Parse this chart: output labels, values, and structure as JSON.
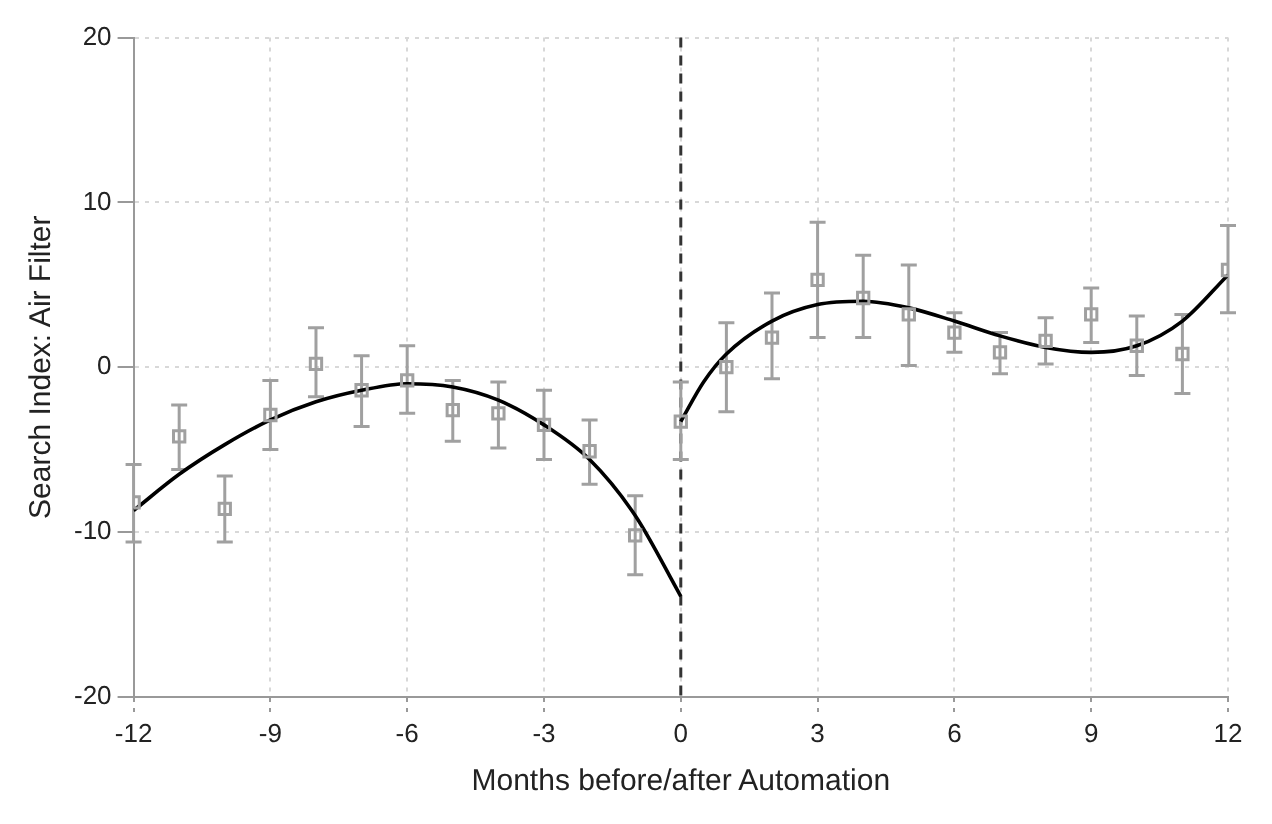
{
  "chart_data": {
    "type": "scatter",
    "xlabel": "Months before/after Automation",
    "ylabel": "Search Index: Air Filter",
    "x": [
      -12,
      -11,
      -10,
      -9,
      -8,
      -7,
      -6,
      -5,
      -4,
      -3,
      -2,
      -1,
      0,
      1,
      2,
      3,
      4,
      5,
      6,
      7,
      8,
      9,
      10,
      11,
      12
    ],
    "xlim": [
      -12,
      12
    ],
    "xticks": [
      -12,
      -9,
      -6,
      -3,
      0,
      3,
      6,
      9,
      12
    ],
    "ylim": [
      -20,
      20
    ],
    "yticks": [
      -20,
      -10,
      0,
      10,
      20
    ],
    "grid": true,
    "legend": false,
    "series": [
      {
        "type": "scatter",
        "marker": "square",
        "color": "#a0a0a0",
        "values": [
          -8.2,
          -4.2,
          -8.6,
          -2.9,
          0.2,
          -1.4,
          -0.8,
          -2.6,
          -2.8,
          -3.5,
          -5.1,
          -10.2,
          -3.3,
          0,
          1.8,
          5.3,
          4.2,
          3.2,
          2.1,
          0.9,
          1.6,
          3.2,
          1.3,
          0.8,
          5.9
        ],
        "errors": [
          [
            -10.6,
            -5.9
          ],
          [
            -6.2,
            -2.3
          ],
          [
            -10.6,
            -6.6
          ],
          [
            -5.0,
            -0.8
          ],
          [
            -1.8,
            2.4
          ],
          [
            -3.6,
            0.7
          ],
          [
            -2.8,
            1.3
          ],
          [
            -4.5,
            -0.8
          ],
          [
            -4.9,
            -0.9
          ],
          [
            -5.6,
            -1.4
          ],
          [
            -7.1,
            -3.2
          ],
          [
            -12.6,
            -7.8
          ],
          [
            -5.6,
            -0.9
          ],
          [
            -2.7,
            2.7
          ],
          [
            -0.7,
            4.5
          ],
          [
            1.8,
            8.8
          ],
          [
            1.8,
            6.8
          ],
          [
            0.1,
            6.2
          ],
          [
            0.9,
            3.3
          ],
          [
            -0.4,
            2.1
          ],
          [
            0.2,
            3.0
          ],
          [
            1.5,
            4.8
          ],
          [
            -0.5,
            3.1
          ],
          [
            -1.6,
            3.2
          ],
          [
            3.3,
            8.6
          ]
        ]
      },
      {
        "type": "line",
        "marker": "none",
        "color": "#000000",
        "x": [
          -12,
          -11,
          -10,
          -9,
          -8,
          -7,
          -6,
          -5,
          -4,
          -3,
          -2,
          -1,
          0
        ],
        "values": [
          -8.7,
          -6.5,
          -4.7,
          -3.2,
          -2.1,
          -1.4,
          -1.0,
          -1.2,
          -2.0,
          -3.5,
          -5.6,
          -9.0,
          -13.9
        ]
      },
      {
        "type": "line",
        "marker": "none",
        "color": "#000000",
        "x": [
          0,
          0.5,
          1,
          2,
          3,
          4,
          5,
          6,
          7,
          8,
          9,
          10,
          11,
          12
        ],
        "values": [
          -3.3,
          -0.9,
          0.8,
          2.8,
          3.8,
          4.0,
          3.6,
          2.8,
          1.9,
          1.2,
          0.9,
          1.3,
          2.8,
          5.6
        ]
      }
    ],
    "ref_lines": [
      {
        "axis": "x",
        "value": 0,
        "color": "#333333",
        "line_style": "dashed"
      }
    ]
  }
}
